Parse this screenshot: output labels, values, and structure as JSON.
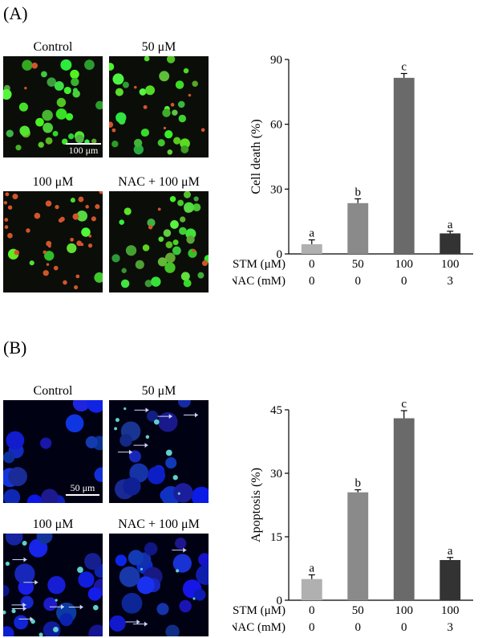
{
  "panels": [
    {
      "label": "(A)",
      "image_titles": [
        "Control",
        "50 μM",
        "100 μM",
        "NAC + 100 μM"
      ],
      "scale_bar": "100 μm",
      "chart_data": {
        "type": "bar",
        "categories": [
          "STM 0 / NAC 0",
          "STM 50 / NAC 0",
          "STM 100 / NAC 0",
          "STM 100 / NAC 3"
        ],
        "values": [
          4.5,
          23.5,
          81.5,
          9.5
        ],
        "errors": [
          2.0,
          2.0,
          2.0,
          1.0
        ],
        "letters": [
          "a",
          "b",
          "c",
          "a"
        ],
        "colors": [
          "#b0b0b0",
          "#8a8a8a",
          "#6a6a6a",
          "#333333"
        ],
        "ylabel": "Cell death (%)",
        "ylim": [
          0,
          90
        ],
        "yticks": [
          "0",
          "30",
          "60",
          "90"
        ],
        "row_labels": [
          "STM (μM)",
          "NAC (mM)"
        ],
        "stm": [
          "0",
          "50",
          "100",
          "100"
        ],
        "nac": [
          "0",
          "0",
          "0",
          "3"
        ]
      }
    },
    {
      "label": "(B)",
      "image_titles": [
        "Control",
        "50 μM",
        "100 μM",
        "NAC + 100 μM"
      ],
      "scale_bar": "50 μm",
      "chart_data": {
        "type": "bar",
        "categories": [
          "STM 0 / NAC 0",
          "STM 50 / NAC 0",
          "STM 100 / NAC 0",
          "STM 100 / NAC 3"
        ],
        "values": [
          5.0,
          25.5,
          43.0,
          9.5
        ],
        "errors": [
          1.0,
          0.6,
          1.8,
          0.6
        ],
        "letters": [
          "a",
          "b",
          "c",
          "a"
        ],
        "colors": [
          "#b0b0b0",
          "#8a8a8a",
          "#6a6a6a",
          "#333333"
        ],
        "ylabel": "Apoptosis (%)",
        "ylim": [
          0,
          45
        ],
        "yticks": [
          "0",
          "15",
          "30",
          "45"
        ],
        "row_labels": [
          "STM (μM)",
          "NAC (mM)"
        ],
        "stm": [
          "0",
          "50",
          "100",
          "100"
        ],
        "nac": [
          "0",
          "0",
          "0",
          "3"
        ]
      }
    }
  ]
}
